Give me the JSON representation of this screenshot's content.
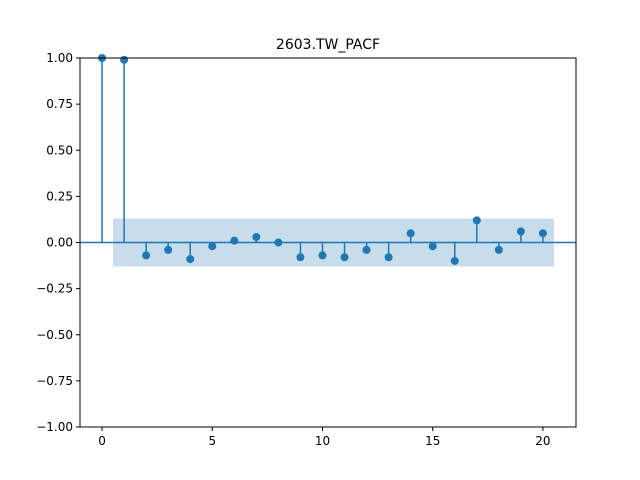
{
  "chart_data": {
    "type": "stem",
    "title": "2603.TW_PACF",
    "xlabel": "",
    "ylabel": "",
    "xlim": [
      -1,
      21.5
    ],
    "ylim": [
      -1.0,
      1.0
    ],
    "x_ticks": [
      0,
      5,
      10,
      15,
      20
    ],
    "x_tick_labels": [
      "0",
      "5",
      "10",
      "15",
      "20"
    ],
    "y_ticks": [
      1.0,
      0.75,
      0.5,
      0.25,
      0.0,
      -0.25,
      -0.5,
      -0.75,
      -1.0
    ],
    "y_tick_labels": [
      "1.00",
      "0.75",
      "0.50",
      "0.25",
      "0.00",
      "−0.25",
      "−0.50",
      "−0.75",
      "−1.00"
    ],
    "grid": false,
    "lags": [
      0,
      1,
      2,
      3,
      4,
      5,
      6,
      7,
      8,
      9,
      10,
      11,
      12,
      13,
      14,
      15,
      16,
      17,
      18,
      19,
      20
    ],
    "values": [
      1.0,
      0.99,
      -0.07,
      -0.04,
      -0.09,
      -0.02,
      0.01,
      0.03,
      0.0,
      -0.08,
      -0.07,
      -0.08,
      -0.04,
      -0.08,
      0.05,
      -0.02,
      -0.1,
      0.12,
      -0.04,
      0.06,
      0.05
    ],
    "confidence_band": {
      "x_start": 0.5,
      "x_end": 20.5,
      "lower": -0.13,
      "upper": 0.13
    },
    "colors": {
      "stem": "#1f77b4",
      "band": "#1f77b4",
      "axes": "#000000"
    }
  }
}
